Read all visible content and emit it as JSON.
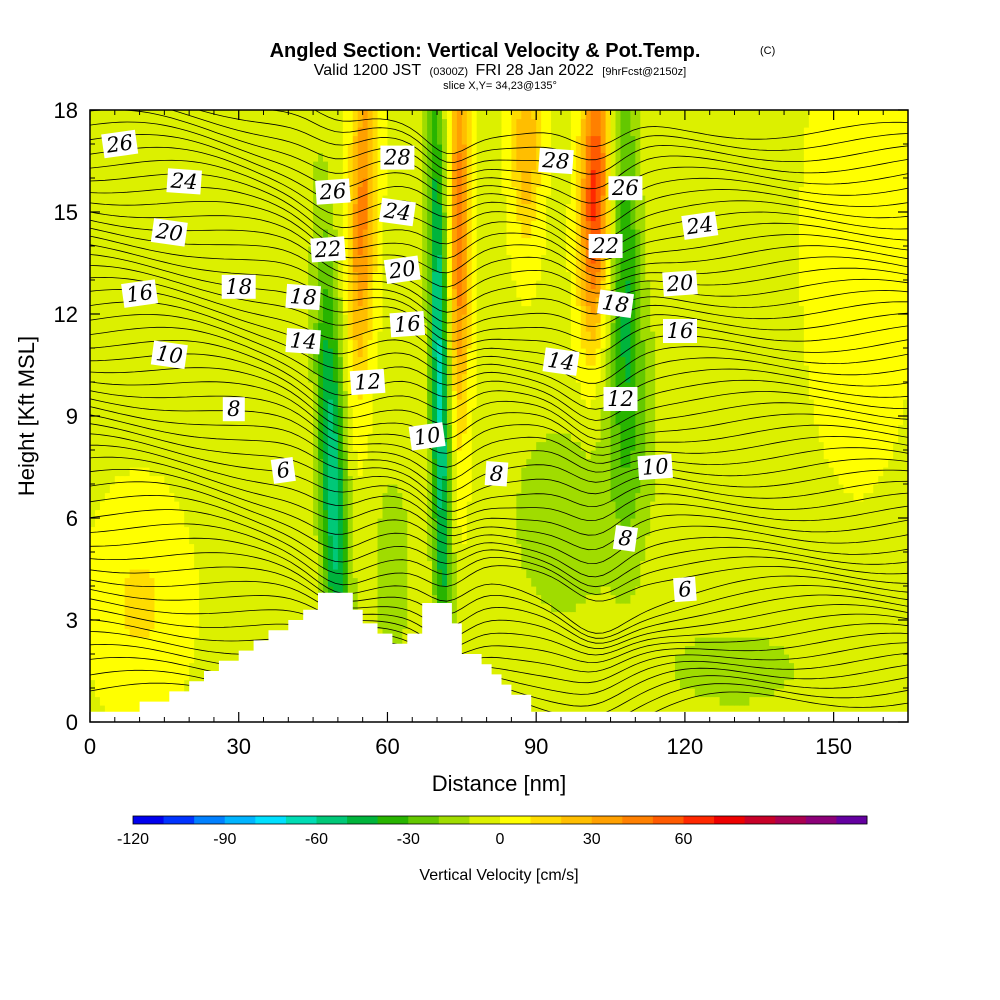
{
  "title": {
    "main": "Angled Section: Vertical Velocity & Pot.Temp.",
    "copyright": "(C)",
    "valid_prefix": "Valid 1200 JST",
    "valid_utc": "(0300Z)",
    "valid_date": "FRI 28 Jan 2022",
    "forecast": "[9hrFcst@2150z]",
    "slice": "slice X,Y= 34,23@135°"
  },
  "chart_data": {
    "type": "heatmap",
    "xlabel": "Distance [nm]",
    "ylabel": "Height [Kft MSL]",
    "xlim": [
      0,
      165
    ],
    "ylim": [
      0,
      18
    ],
    "x_ticks": [
      0,
      30,
      60,
      90,
      120,
      150
    ],
    "y_ticks": [
      0,
      3,
      6,
      9,
      12,
      15,
      18
    ],
    "colorbar": {
      "label": "Vertical Velocity [cm/s]",
      "range": [
        -120,
        80
      ],
      "step": 10,
      "tick_values": [
        -120,
        -90,
        -60,
        -30,
        0,
        30,
        60
      ],
      "colors": [
        "#0000ee",
        "#0033ff",
        "#0080ff",
        "#00b4ff",
        "#00e0ff",
        "#00dcb4",
        "#00c878",
        "#00b43c",
        "#28b400",
        "#64c800",
        "#a0dc00",
        "#dcf000",
        "#ffff00",
        "#ffdc00",
        "#ffbe00",
        "#ffa000",
        "#ff8000",
        "#ff5a00",
        "#ff2800",
        "#ee0000",
        "#c80028",
        "#aa0050",
        "#8c0078",
        "#6400a0"
      ]
    },
    "terrain": [
      [
        0,
        0.3
      ],
      [
        10,
        0.3
      ],
      [
        10,
        0.6
      ],
      [
        16,
        0.6
      ],
      [
        16,
        0.9
      ],
      [
        20,
        0.9
      ],
      [
        20,
        1.2
      ],
      [
        23,
        1.2
      ],
      [
        23,
        1.5
      ],
      [
        26,
        1.5
      ],
      [
        26,
        1.8
      ],
      [
        30,
        1.8
      ],
      [
        30,
        2.1
      ],
      [
        33,
        2.1
      ],
      [
        33,
        2.4
      ],
      [
        36,
        2.4
      ],
      [
        36,
        2.7
      ],
      [
        40,
        2.7
      ],
      [
        40,
        3.0
      ],
      [
        43,
        3.0
      ],
      [
        43,
        3.3
      ],
      [
        46,
        3.3
      ],
      [
        46,
        3.8
      ],
      [
        53,
        3.8
      ],
      [
        53,
        3.3
      ],
      [
        55,
        3.3
      ],
      [
        55,
        2.9
      ],
      [
        58,
        2.9
      ],
      [
        58,
        2.6
      ],
      [
        61,
        2.6
      ],
      [
        61,
        2.3
      ],
      [
        64,
        2.3
      ],
      [
        64,
        2.6
      ],
      [
        67,
        2.6
      ],
      [
        67,
        3.5
      ],
      [
        73,
        3.5
      ],
      [
        73,
        2.9
      ],
      [
        75,
        2.9
      ],
      [
        75,
        2.0
      ],
      [
        79,
        2.0
      ],
      [
        79,
        1.7
      ],
      [
        81,
        1.7
      ],
      [
        81,
        1.4
      ],
      [
        83,
        1.4
      ],
      [
        83,
        1.1
      ],
      [
        85,
        1.1
      ],
      [
        85,
        0.8
      ],
      [
        89,
        0.8
      ],
      [
        89,
        0.3
      ],
      [
        165,
        0.3
      ]
    ],
    "theta_contours": [
      {
        "label": "6",
        "positions": [
          [
            39,
            7.4
          ],
          [
            120,
            3.9
          ]
        ]
      },
      {
        "label": "8",
        "positions": [
          [
            29,
            9.2
          ],
          [
            82,
            7.3
          ],
          [
            108,
            5.4
          ]
        ]
      },
      {
        "label": "10",
        "positions": [
          [
            16,
            10.8
          ],
          [
            68,
            8.4
          ],
          [
            114,
            7.5
          ]
        ]
      },
      {
        "label": "12",
        "positions": [
          [
            56,
            10.0
          ],
          [
            107,
            9.5
          ]
        ]
      },
      {
        "label": "14",
        "positions": [
          [
            43,
            11.2
          ],
          [
            95,
            10.6
          ]
        ]
      },
      {
        "label": "16",
        "positions": [
          [
            10,
            12.6
          ],
          [
            64,
            11.7
          ],
          [
            119,
            11.5
          ]
        ]
      },
      {
        "label": "18",
        "positions": [
          [
            30,
            12.8
          ],
          [
            43,
            12.5
          ],
          [
            106,
            12.3
          ]
        ]
      },
      {
        "label": "20",
        "positions": [
          [
            16,
            14.4
          ],
          [
            63,
            13.3
          ],
          [
            119,
            12.9
          ]
        ]
      },
      {
        "label": "22",
        "positions": [
          [
            48,
            13.9
          ],
          [
            104,
            14.0
          ]
        ]
      },
      {
        "label": "24",
        "positions": [
          [
            19,
            15.9
          ],
          [
            62,
            15.0
          ],
          [
            123,
            14.6
          ]
        ]
      },
      {
        "label": "26",
        "positions": [
          [
            6,
            17.0
          ],
          [
            49,
            15.6
          ],
          [
            108,
            15.7
          ]
        ]
      },
      {
        "label": "28",
        "positions": [
          [
            62,
            16.6
          ],
          [
            94,
            16.5
          ]
        ]
      }
    ],
    "theta_line_count": 54
  }
}
